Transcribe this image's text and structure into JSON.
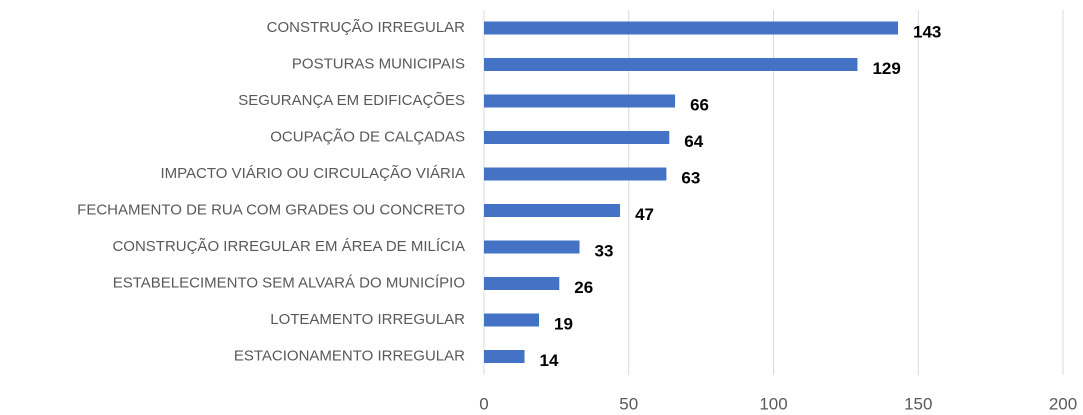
{
  "chart_data": {
    "type": "bar",
    "orientation": "horizontal",
    "categories": [
      "CONSTRUÇÃO IRREGULAR",
      "POSTURAS MUNICIPAIS",
      "SEGURANÇA EM EDIFICAÇÕES",
      "OCUPAÇÃO DE CALÇADAS",
      "IMPACTO VIÁRIO OU CIRCULAÇÃO VIÁRIA",
      "FECHAMENTO DE RUA COM GRADES OU CONCRETO",
      "CONSTRUÇÃO IRREGULAR EM ÁREA DE MILÍCIA",
      "ESTABELECIMENTO SEM ALVARÁ DO MUNICÍPIO",
      "LOTEAMENTO IRREGULAR",
      "ESTACIONAMENTO IRREGULAR"
    ],
    "values": [
      143,
      129,
      66,
      64,
      63,
      47,
      33,
      26,
      19,
      14
    ],
    "color": "#4472c4",
    "xlim": [
      0,
      200
    ],
    "xticks": [
      0,
      50,
      100,
      150,
      200
    ],
    "grid": true
  }
}
